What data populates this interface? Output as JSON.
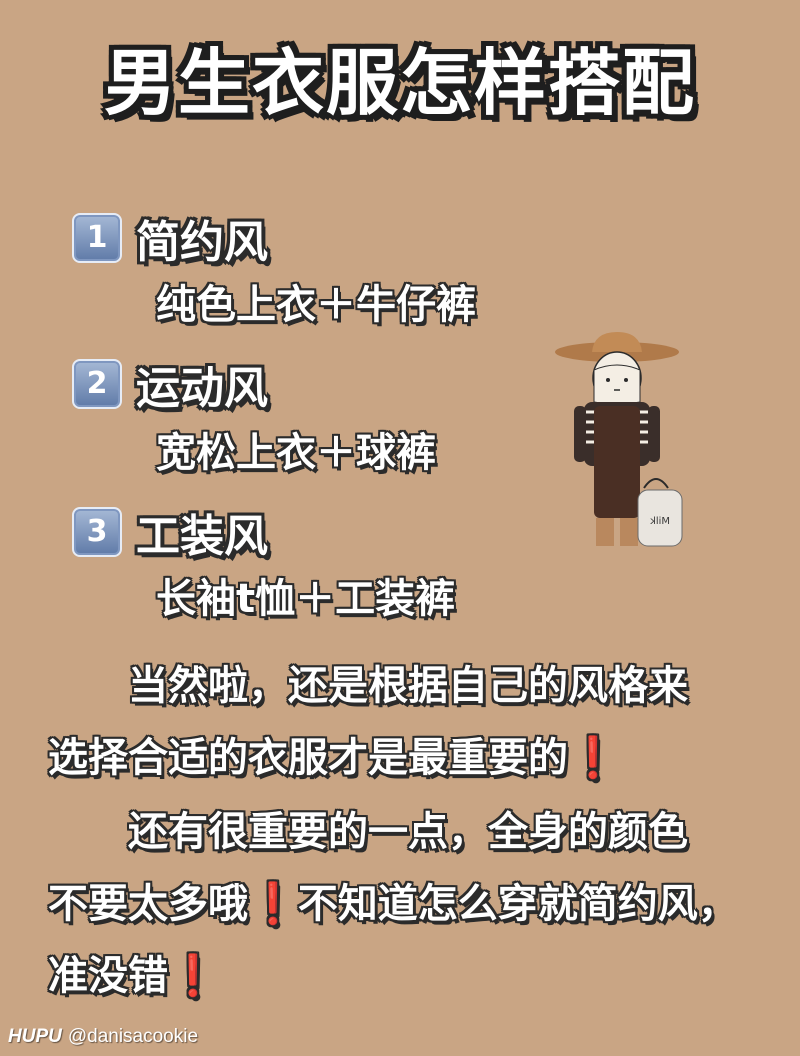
{
  "title": "男生衣服怎样搭配",
  "sections": [
    {
      "number": "1",
      "name": "简约风",
      "desc": "纯色上衣＋牛仔裤"
    },
    {
      "number": "2",
      "name": "运动风",
      "desc": "宽松上衣＋球裤"
    },
    {
      "number": "3",
      "name": "工装风",
      "desc": "长袖t恤＋工装裤"
    }
  ],
  "paragraph1": {
    "line1": "当然啦，还是根据自己的风格来",
    "line2": "选择合适的衣服才是最重要的",
    "mark": "❗"
  },
  "paragraph2": {
    "line1": "还有很重要的一点，全身的颜色",
    "line2a": "不要太多哦",
    "mark1": "❗",
    "line2b": "不知道怎么穿就简约风，",
    "line3": "准没错",
    "mark2": "❗"
  },
  "illustration": {
    "bucket_label": "Milk",
    "icon": "farmer-with-milk-bucket-icon"
  },
  "watermark": {
    "brand": "HUPU",
    "handle": "@danisacookie"
  },
  "colors": {
    "background": "#c9a584",
    "exclaim": "#e0322b",
    "number_box": "#6f88b4"
  }
}
